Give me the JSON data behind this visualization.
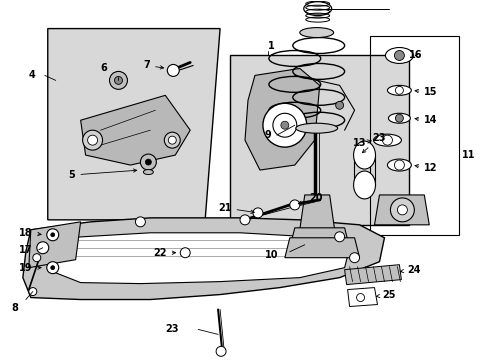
{
  "bg_color": "#ffffff",
  "box_bg": "#e0e0e0",
  "line_color": "#000000",
  "fig_width": 4.89,
  "fig_height": 3.6,
  "dpi": 100,
  "label_fs": 7,
  "small_fs": 6
}
